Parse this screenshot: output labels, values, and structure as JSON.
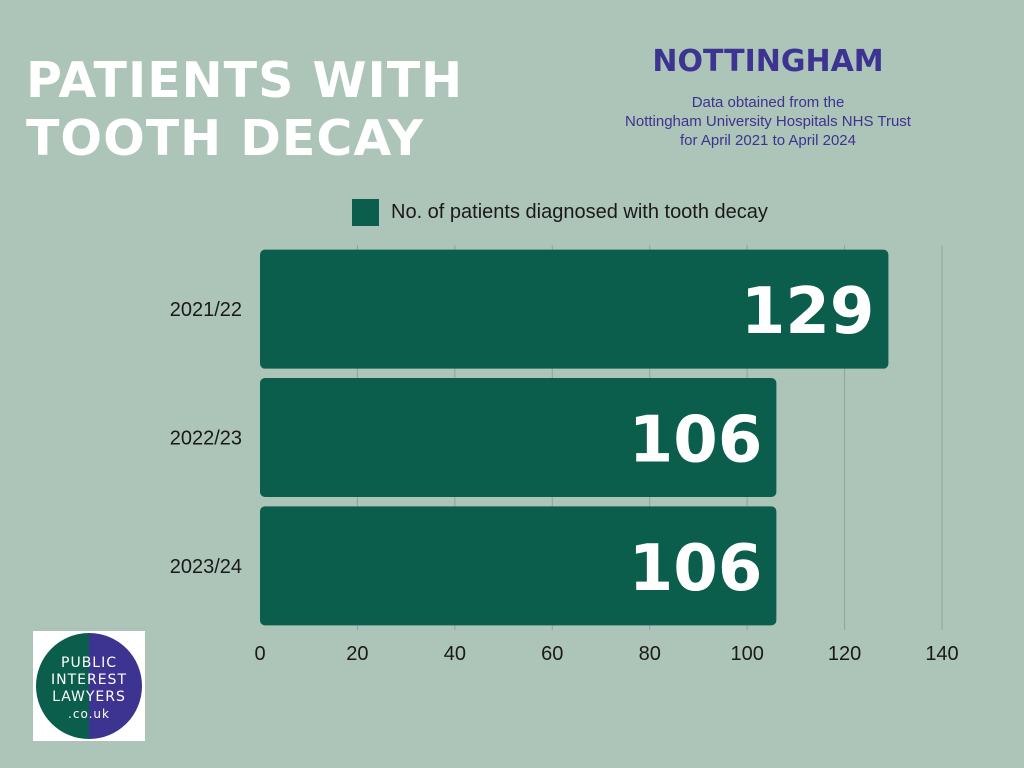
{
  "header": {
    "title_line1": "PATIENTS WITH",
    "title_line2": "TOOTH DECAY",
    "city": "NOTTINGHAM",
    "source_line1": "Data obtained from the",
    "source_line2": "Nottingham University Hospitals NHS Trust",
    "source_line3": "for April 2021 to April 2024"
  },
  "colors": {
    "background": "#adc4b8",
    "bar": "#0a5e4b",
    "accent": "#3d3391",
    "title": "#ffffff"
  },
  "chart_data": {
    "type": "bar",
    "orientation": "horizontal",
    "categories": [
      "2021/22",
      "2022/23",
      "2023/24"
    ],
    "series": [
      {
        "name": "No. of patients diagnosed with tooth decay",
        "values": [
          129,
          106,
          106
        ]
      }
    ],
    "data_labels": [
      "129",
      "106",
      "106"
    ],
    "xlim": [
      0,
      140
    ],
    "xticks": [
      "0",
      "20",
      "40",
      "60",
      "80",
      "100",
      "120",
      "140"
    ],
    "grid": true,
    "legend": "top"
  },
  "logo": {
    "line1": "PUBLIC",
    "line2": "INTEREST",
    "line3": "LAWYERS",
    "line4": ".co.uk"
  }
}
